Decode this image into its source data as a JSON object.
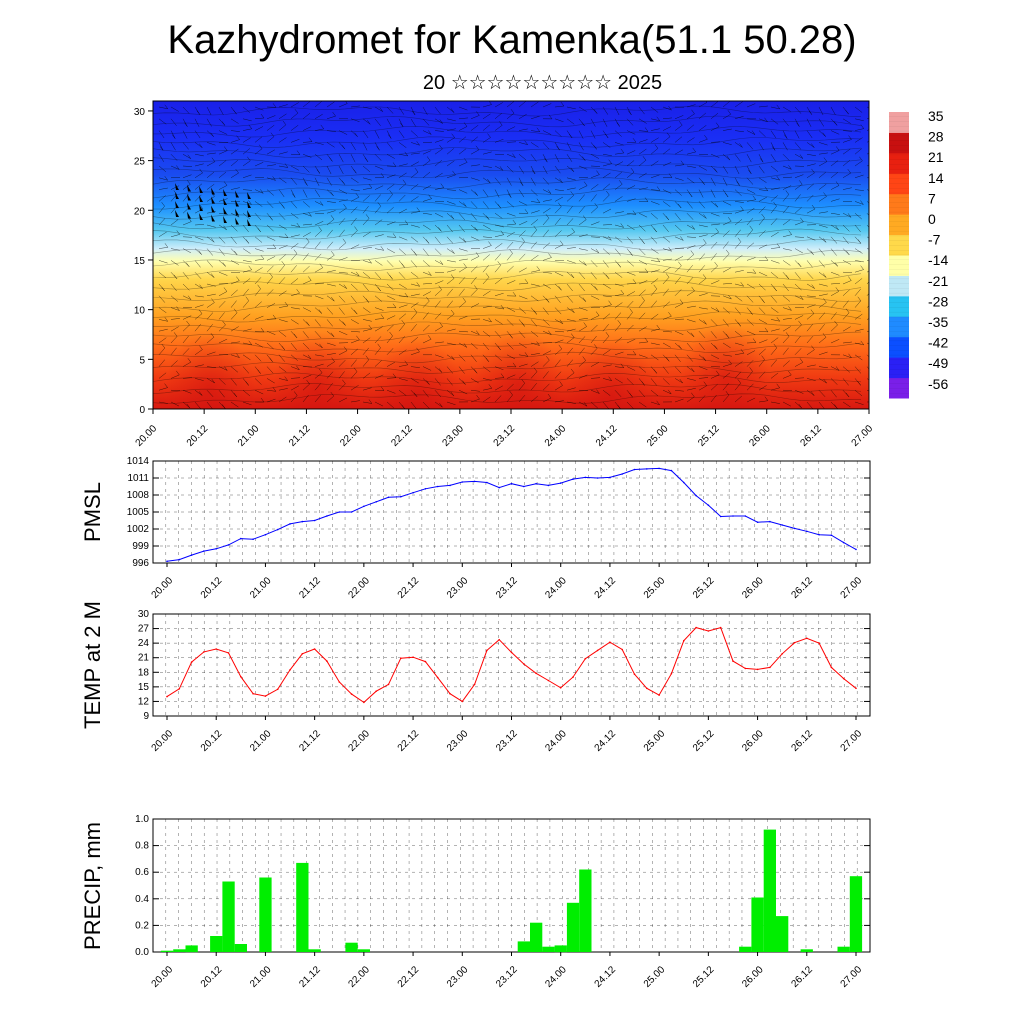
{
  "header": {
    "title": "Kazhydromet for Kamenka(51.1 50.28)",
    "subtitle": "20 ☆☆☆☆☆☆☆☆☆ 2025"
  },
  "colors": {
    "pmsl_line": "#0000ff",
    "temp_line": "#ff0000",
    "precip_bar": "#00ee00",
    "colorbar_stops": [
      "#7a1fe8",
      "#2a20f5",
      "#0b4fff",
      "#1f8bff",
      "#27c3f2",
      "#bfe8f5",
      "#ffffa8",
      "#ffd94a",
      "#ffaa22",
      "#ff7a1a",
      "#ff4515",
      "#e82010",
      "#c81010",
      "#f0a0a0"
    ]
  },
  "chart_data": [
    {
      "type": "heatmap",
      "name_key": "cross-section",
      "title": "",
      "xlabel": "",
      "ylabel": "",
      "xtick_labels": [
        "20.00",
        "20.12",
        "21.00",
        "21.12",
        "22.00",
        "22.12",
        "23.00",
        "23.12",
        "24.00",
        "24.12",
        "25.00",
        "25.12",
        "26.00",
        "26.12",
        "27.00"
      ],
      "ytick_labels": [
        "0",
        "5",
        "10",
        "15",
        "20",
        "25",
        "30"
      ],
      "ylim": [
        0,
        31
      ],
      "colorbar_labels": [
        "35",
        "28",
        "21",
        "14",
        "7",
        "0",
        "-7",
        "-14",
        "-21",
        "-28",
        "-35",
        "-42",
        "-49",
        "-56"
      ],
      "overlay": "wind barbs"
    },
    {
      "type": "line",
      "ylabel": "PMSL",
      "xtick_labels": [
        "20.00",
        "20.12",
        "21.00",
        "21.12",
        "22.00",
        "22.12",
        "23.00",
        "23.12",
        "24.00",
        "24.12",
        "25.00",
        "25.12",
        "26.00",
        "26.12",
        "27.00"
      ],
      "ytick_labels": [
        "996",
        "999",
        "1002",
        "1005",
        "1008",
        "1011",
        "1014"
      ],
      "ylim": [
        996,
        1014
      ],
      "x": [
        0,
        3,
        6,
        9,
        12,
        15,
        18,
        21,
        24,
        27,
        30,
        33,
        36,
        39,
        42,
        45,
        48,
        51,
        54,
        57,
        60,
        63,
        66,
        69,
        72,
        75,
        78,
        81,
        84,
        87,
        90,
        93,
        96,
        99,
        102,
        105,
        108,
        111,
        114,
        117,
        120,
        123,
        126,
        129,
        132,
        135,
        138,
        141,
        144,
        147,
        150,
        153,
        156,
        159,
        162,
        165,
        168
      ],
      "values": [
        996.3,
        996.6,
        997.4,
        998.1,
        998.5,
        999.2,
        1000.3,
        1000.2,
        1001.0,
        1001.9,
        1002.9,
        1003.3,
        1003.5,
        1004.3,
        1005.0,
        1005.0,
        1006.0,
        1006.8,
        1007.6,
        1007.7,
        1008.4,
        1009.1,
        1009.5,
        1009.7,
        1010.3,
        1010.4,
        1010.2,
        1009.3,
        1010.0,
        1009.5,
        1010.0,
        1009.7,
        1010.1,
        1010.8,
        1011.1,
        1011.0,
        1011.1,
        1011.7,
        1012.5,
        1012.6,
        1012.7,
        1012.3,
        1010.2,
        1007.9,
        1006.2,
        1004.2,
        1004.3,
        1004.3,
        1003.2,
        1003.3,
        1002.7,
        1002.1,
        1001.6,
        1001.0,
        1000.9,
        999.6,
        998.4
      ]
    },
    {
      "type": "line",
      "ylabel": "TEMP at 2 M",
      "xtick_labels": [
        "20.00",
        "20.12",
        "21.00",
        "21.12",
        "22.00",
        "22.12",
        "23.00",
        "23.12",
        "24.00",
        "24.12",
        "25.00",
        "25.12",
        "26.00",
        "26.12",
        "27.00"
      ],
      "ytick_labels": [
        "9",
        "12",
        "15",
        "18",
        "21",
        "24",
        "27",
        "30"
      ],
      "ylim": [
        9,
        30
      ],
      "x": [
        0,
        3,
        6,
        9,
        12,
        15,
        18,
        21,
        24,
        27,
        30,
        33,
        36,
        39,
        42,
        45,
        48,
        51,
        54,
        57,
        60,
        63,
        66,
        69,
        72,
        75,
        78,
        81,
        84,
        87,
        90,
        93,
        96,
        99,
        102,
        105,
        108,
        111,
        114,
        117,
        120,
        123,
        126,
        129,
        132,
        135,
        138,
        141,
        144,
        147,
        150,
        153,
        156,
        159,
        162,
        165,
        168
      ],
      "values": [
        13.0,
        14.6,
        20.1,
        22.2,
        22.8,
        22.0,
        17.1,
        13.6,
        13.1,
        14.5,
        18.5,
        21.8,
        22.8,
        20.3,
        16.0,
        13.5,
        11.8,
        14.1,
        15.5,
        20.9,
        21.1,
        20.2,
        16.9,
        13.6,
        12.0,
        15.5,
        22.5,
        24.7,
        22.1,
        19.7,
        17.8,
        16.3,
        14.8,
        17.0,
        20.8,
        22.5,
        24.2,
        22.7,
        17.6,
        14.7,
        13.3,
        17.7,
        24.5,
        27.2,
        26.5,
        27.2,
        20.3,
        18.8,
        18.6,
        19.0,
        21.8,
        24.1,
        25.0,
        24.0,
        19.0,
        16.7,
        14.7
      ]
    },
    {
      "type": "bar",
      "ylabel": "PRECIP, mm",
      "xtick_labels": [
        "20.00",
        "20.12",
        "21.00",
        "21.12",
        "22.00",
        "22.12",
        "23.00",
        "23.12",
        "24.00",
        "24.12",
        "25.00",
        "25.12",
        "26.00",
        "26.12",
        "27.00"
      ],
      "ytick_labels": [
        "0.0",
        "0.2",
        "0.4",
        "0.6",
        "0.8",
        "1.0"
      ],
      "ylim": [
        0,
        1.0
      ],
      "x": [
        0,
        3,
        6,
        9,
        12,
        15,
        18,
        21,
        24,
        27,
        30,
        33,
        36,
        39,
        42,
        45,
        48,
        51,
        54,
        57,
        60,
        63,
        66,
        69,
        72,
        75,
        78,
        81,
        84,
        87,
        90,
        93,
        96,
        99,
        102,
        105,
        108,
        111,
        114,
        117,
        120,
        123,
        126,
        129,
        132,
        135,
        138,
        141,
        144,
        147,
        150,
        153,
        156,
        159,
        162,
        165,
        168
      ],
      "values": [
        0.01,
        0.02,
        0.05,
        0,
        0.12,
        0.53,
        0.06,
        0,
        0.56,
        0,
        0,
        0.67,
        0.02,
        0,
        0,
        0.07,
        0.02,
        0,
        0,
        0,
        0,
        0,
        0,
        0,
        0,
        0,
        0,
        0,
        0,
        0.08,
        0.22,
        0.04,
        0.05,
        0.37,
        0.62,
        0,
        0,
        0,
        0,
        0,
        0,
        0,
        0,
        0,
        0,
        0,
        0,
        0.04,
        0.41,
        0.92,
        0.27,
        0,
        0.02,
        0,
        0,
        0.04,
        0.57
      ]
    }
  ]
}
